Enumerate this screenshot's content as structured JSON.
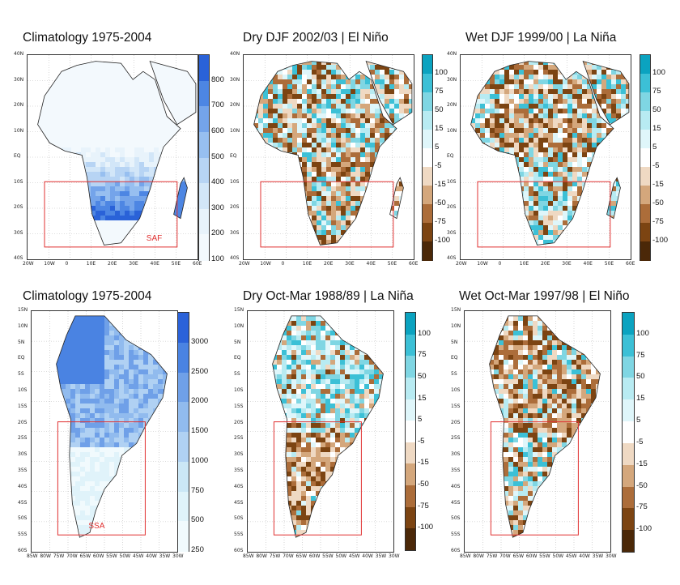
{
  "panels": [
    {
      "title": "Climatology 1975-2004",
      "region": "SAF",
      "cbar_type": "clim_af",
      "lat_labels": [
        "40N",
        "30N",
        "20N",
        "10N",
        "EQ",
        "10S",
        "20S",
        "30S",
        "40S"
      ],
      "lon_labels": [
        "20W",
        "10W",
        "0",
        "10E",
        "20E",
        "30E",
        "40E",
        "50E",
        "60E"
      ],
      "cbar_labels": [
        "800",
        "700",
        "600",
        "500",
        "400",
        "300",
        "200",
        "100"
      ]
    },
    {
      "title": "Dry DJF 2002/03  | El Niño",
      "region": "",
      "cbar_type": "anom",
      "lat_labels": [
        "40N",
        "30N",
        "20N",
        "10N",
        "EQ",
        "10S",
        "20S",
        "30S",
        "40S"
      ],
      "lon_labels": [
        "20W",
        "10W",
        "0",
        "10E",
        "20E",
        "30E",
        "40E",
        "50E",
        "60E"
      ],
      "cbar_labels": [
        "100",
        "75",
        "50",
        "15",
        "5",
        "-5",
        "-15",
        "-50",
        "-75",
        "-100"
      ]
    },
    {
      "title": "Wet DJF 1999/00 | La Niña",
      "region": "",
      "cbar_type": "anom",
      "lat_labels": [
        "40N",
        "30N",
        "20N",
        "10N",
        "EQ",
        "10S",
        "20S",
        "30S",
        "40S"
      ],
      "lon_labels": [
        "20W",
        "10W",
        "0",
        "10E",
        "20E",
        "30E",
        "40E",
        "50E",
        "60E"
      ],
      "cbar_labels": [
        "100",
        "75",
        "50",
        "15",
        "5",
        "-5",
        "-15",
        "-50",
        "-75",
        "-100"
      ]
    },
    {
      "title": "Climatology 1975-2004",
      "region": "SSA",
      "cbar_type": "clim_sa",
      "lat_labels": [
        "15N",
        "10N",
        "5N",
        "EQ",
        "5S",
        "10S",
        "15S",
        "20S",
        "25S",
        "30S",
        "35S",
        "40S",
        "45S",
        "50S",
        "55S",
        "60S"
      ],
      "lon_labels": [
        "85W",
        "80W",
        "75W",
        "70W",
        "65W",
        "60W",
        "55W",
        "50W",
        "45W",
        "40W",
        "35W",
        "30W"
      ],
      "cbar_labels": [
        "3000",
        "2500",
        "2000",
        "1500",
        "1000",
        "750",
        "500",
        "250"
      ]
    },
    {
      "title": "Dry Oct-Mar 1988/89 | La Niña",
      "region": "",
      "cbar_type": "anom",
      "lat_labels": [
        "15N",
        "10N",
        "5N",
        "EQ",
        "5S",
        "10S",
        "15S",
        "20S",
        "25S",
        "30S",
        "35S",
        "40S",
        "45S",
        "50S",
        "55S",
        "60S"
      ],
      "lon_labels": [
        "85W",
        "80W",
        "75W",
        "70W",
        "65W",
        "60W",
        "55W",
        "50W",
        "45W",
        "40W",
        "35W",
        "30W"
      ],
      "cbar_labels": [
        "100",
        "75",
        "50",
        "15",
        "5",
        "-5",
        "-15",
        "-50",
        "-75",
        "-100"
      ]
    },
    {
      "title": "Wet Oct-Mar 1997/98 | El Niño",
      "region": "",
      "cbar_type": "anom",
      "lat_labels": [
        "15N",
        "10N",
        "5N",
        "EQ",
        "5S",
        "10S",
        "15S",
        "20S",
        "25S",
        "30S",
        "35S",
        "40S",
        "45S",
        "50S",
        "55S",
        "60S"
      ],
      "lon_labels": [
        "85W",
        "80W",
        "75W",
        "70W",
        "65W",
        "60W",
        "55W",
        "50W",
        "45W",
        "40W",
        "35W",
        "30W"
      ],
      "cbar_labels": [
        "100",
        "75",
        "50",
        "15",
        "5",
        "-5",
        "-15",
        "-50",
        "-75",
        "-100"
      ]
    }
  ],
  "colors": {
    "anom": [
      "#0ba3c0",
      "#3cc0d6",
      "#7fd6e3",
      "#b8ebf2",
      "#dff6fa",
      "#ffffff",
      "#efd9c3",
      "#d4a77c",
      "#ac6d3a",
      "#7c4412",
      "#4b2808"
    ],
    "clim_af": [
      "#2a62d8",
      "#4d86e3",
      "#74a4ea",
      "#97bff0",
      "#b7d4f4",
      "#d2e6f8",
      "#e8f3fb",
      "#f3f9fd"
    ],
    "clim_sa": [
      "#2b62d9",
      "#4a83e2",
      "#6fa0e8",
      "#91bbee",
      "#b0d1f3",
      "#cbe7f6",
      "#e0f3fa",
      "#f1fafd"
    ],
    "box": "#e03030"
  }
}
